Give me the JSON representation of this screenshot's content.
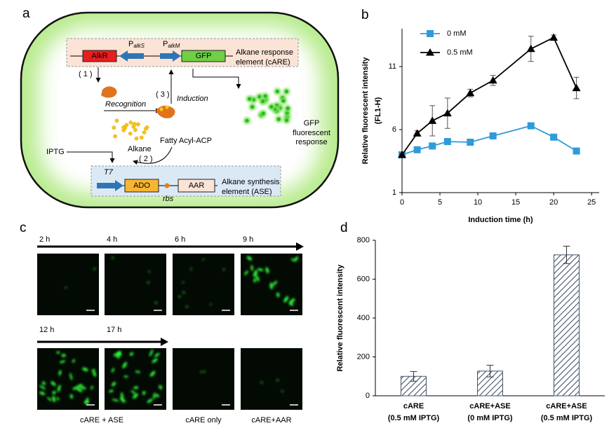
{
  "panels": {
    "a": "a",
    "b": "b",
    "c": "c",
    "d": "d"
  },
  "diagram": {
    "alkr": "AlkR",
    "promoter_s": {
      "letter": "P",
      "sub": "alkS"
    },
    "promoter_m": {
      "letter": "P",
      "sub": "alkM"
    },
    "gfp": "GFP",
    "care": [
      "Alkane response",
      "element (cARE)"
    ],
    "step1": "( 1 )",
    "step2": "( 2 )",
    "step3": "( 3 )",
    "recognition": "Recognition",
    "induction": "Induction",
    "response": [
      "GFP",
      "fluorescent",
      "response"
    ],
    "alkane": "Alkane",
    "fatty": "Fatty Acyl-ACP",
    "iptg": "IPTG",
    "t7": "T7",
    "ado": "ADO",
    "rbs": "rbs",
    "aar": "AAR",
    "ase": [
      "Alkane synthesis",
      "element (ASE)"
    ]
  },
  "micrographs": {
    "times": [
      "2 h",
      "4 h",
      "6 h",
      "9 h",
      "12 h",
      "17 h"
    ],
    "groups": [
      "cARE + ASE",
      "cARE only",
      "cARE+AAR"
    ]
  },
  "chart_data": [
    {
      "type": "line",
      "x_label": "Induction time (h)",
      "y_label": [
        "Relative fluorescent intensity",
        "(FL1-H)"
      ],
      "xlim": [
        0,
        26
      ],
      "xticks": [
        0,
        5,
        10,
        15,
        20,
        25
      ],
      "ylim": [
        1,
        14
      ],
      "yticks": [
        1,
        6,
        11
      ],
      "legend": "upper left",
      "series": [
        {
          "name": "0 mM",
          "color": "#2f9bd8",
          "marker": "square",
          "x": [
            0,
            2,
            4,
            6,
            9,
            12,
            17,
            20,
            23
          ],
          "values": [
            4.0,
            4.4,
            4.7,
            5.05,
            5.0,
            5.5,
            6.3,
            5.4,
            4.3
          ]
        },
        {
          "name": "0.5 mM",
          "color": "#000000",
          "marker": "triangle",
          "x": [
            0,
            2,
            4,
            6,
            9,
            12,
            17,
            20,
            23
          ],
          "values": [
            4.0,
            5.7,
            6.7,
            7.3,
            8.9,
            9.9,
            12.4,
            13.3,
            9.3
          ],
          "errors": [
            0.1,
            0.2,
            1.2,
            1.2,
            0.3,
            0.4,
            1.0,
            0.2,
            0.85
          ]
        }
      ]
    },
    {
      "type": "bar",
      "y_label": "Relative fluorescent intensity",
      "categories": [
        [
          "cARE",
          "(0.5 mM IPTG)"
        ],
        [
          "cARE+ASE",
          "(0 mM IPTG)"
        ],
        [
          "cARE+ASE",
          "(0.5 mM IPTG)"
        ]
      ],
      "values": [
        100,
        127,
        725
      ],
      "errors": [
        25,
        30,
        45
      ],
      "color": "#44546a",
      "ylim": [
        0,
        800
      ],
      "yticks": [
        0,
        200,
        400,
        600,
        800
      ]
    }
  ]
}
